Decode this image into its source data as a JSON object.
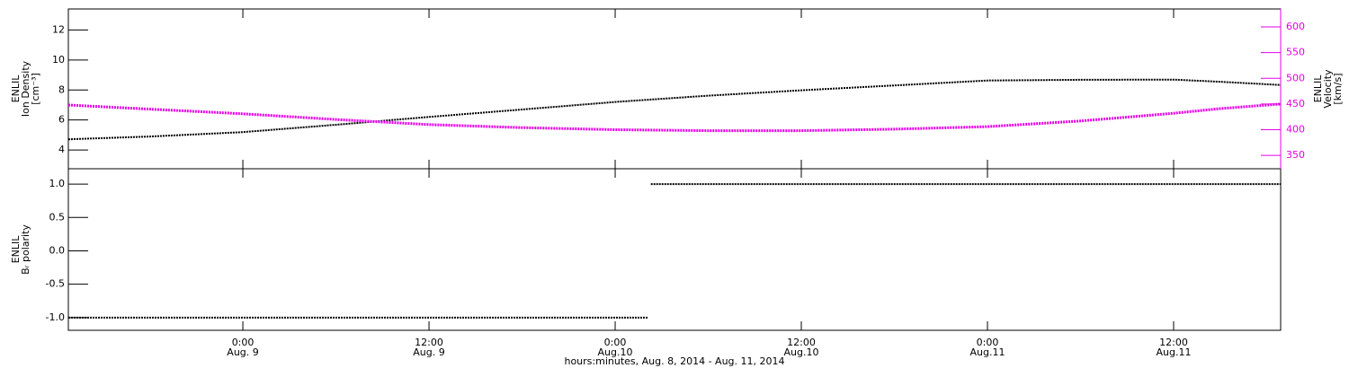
{
  "chart_data": [
    {
      "type": "line",
      "ylabel": [
        "ENLIL",
        "Ion Density",
        "[cm⁻³]"
      ],
      "y2label": [
        "ENLIL",
        "Velocity",
        "[km/s]"
      ],
      "xlim": [
        12.75,
        90.9
      ],
      "ylim": [
        2.75,
        13.4
      ],
      "yticks": [
        4,
        6,
        8,
        10,
        12
      ],
      "y2lim": [
        324,
        635
      ],
      "y2ticks": [
        350,
        400,
        450,
        500,
        550,
        600
      ],
      "y2color": "#e600e6",
      "series": [
        {
          "color": "#000000",
          "axis": "y",
          "x": [
            12.75,
            18,
            24,
            30,
            36,
            42,
            48,
            54,
            60,
            66,
            72,
            78,
            84,
            87,
            90.9
          ],
          "values": [
            4.71,
            4.9,
            5.19,
            5.68,
            6.2,
            6.7,
            7.2,
            7.62,
            7.98,
            8.3,
            8.63,
            8.68,
            8.69,
            8.55,
            8.33
          ]
        },
        {
          "color": "#e600e6",
          "axis": "y2",
          "x": [
            12.75,
            18,
            24,
            30,
            36,
            42,
            48,
            54,
            60,
            66,
            72,
            78,
            84,
            87,
            90.9
          ],
          "values": [
            448,
            440,
            431,
            420,
            410,
            404,
            400,
            398,
            398,
            401,
            406,
            417,
            432,
            441,
            450
          ]
        }
      ]
    },
    {
      "type": "line",
      "ylabel": [
        "ENLIL",
        "Bᵣ polarity"
      ],
      "xlabel": "hours:minutes, Aug.  8, 2014 - Aug. 11, 2014",
      "xlim": [
        12.75,
        90.9
      ],
      "xticks": [
        {
          "value": 24,
          "label": "0:00",
          "date": "Aug. 9"
        },
        {
          "value": 36,
          "label": "12:00",
          "date": "Aug. 9"
        },
        {
          "value": 48,
          "label": "0:00",
          "date": "Aug.10"
        },
        {
          "value": 60,
          "label": "12:00",
          "date": "Aug.10"
        },
        {
          "value": 72,
          "label": "0:00",
          "date": "Aug.11"
        },
        {
          "value": 84,
          "label": "12:00",
          "date": "Aug.11"
        }
      ],
      "ylim": [
        -1.19,
        1.23
      ],
      "yticks": [
        {
          "value": -1,
          "label": "-1.0"
        },
        -0.5,
        {
          "value": 0,
          "label": "0.0"
        },
        0.5,
        {
          "value": 1,
          "label": "1.0"
        }
      ],
      "series": [
        {
          "color": "#000000",
          "axis": "y",
          "x": [
            12.75,
            50.1,
            50.2,
            50.3,
            90.9
          ],
          "values": [
            -1,
            -1,
            null,
            1,
            1
          ]
        }
      ]
    }
  ]
}
